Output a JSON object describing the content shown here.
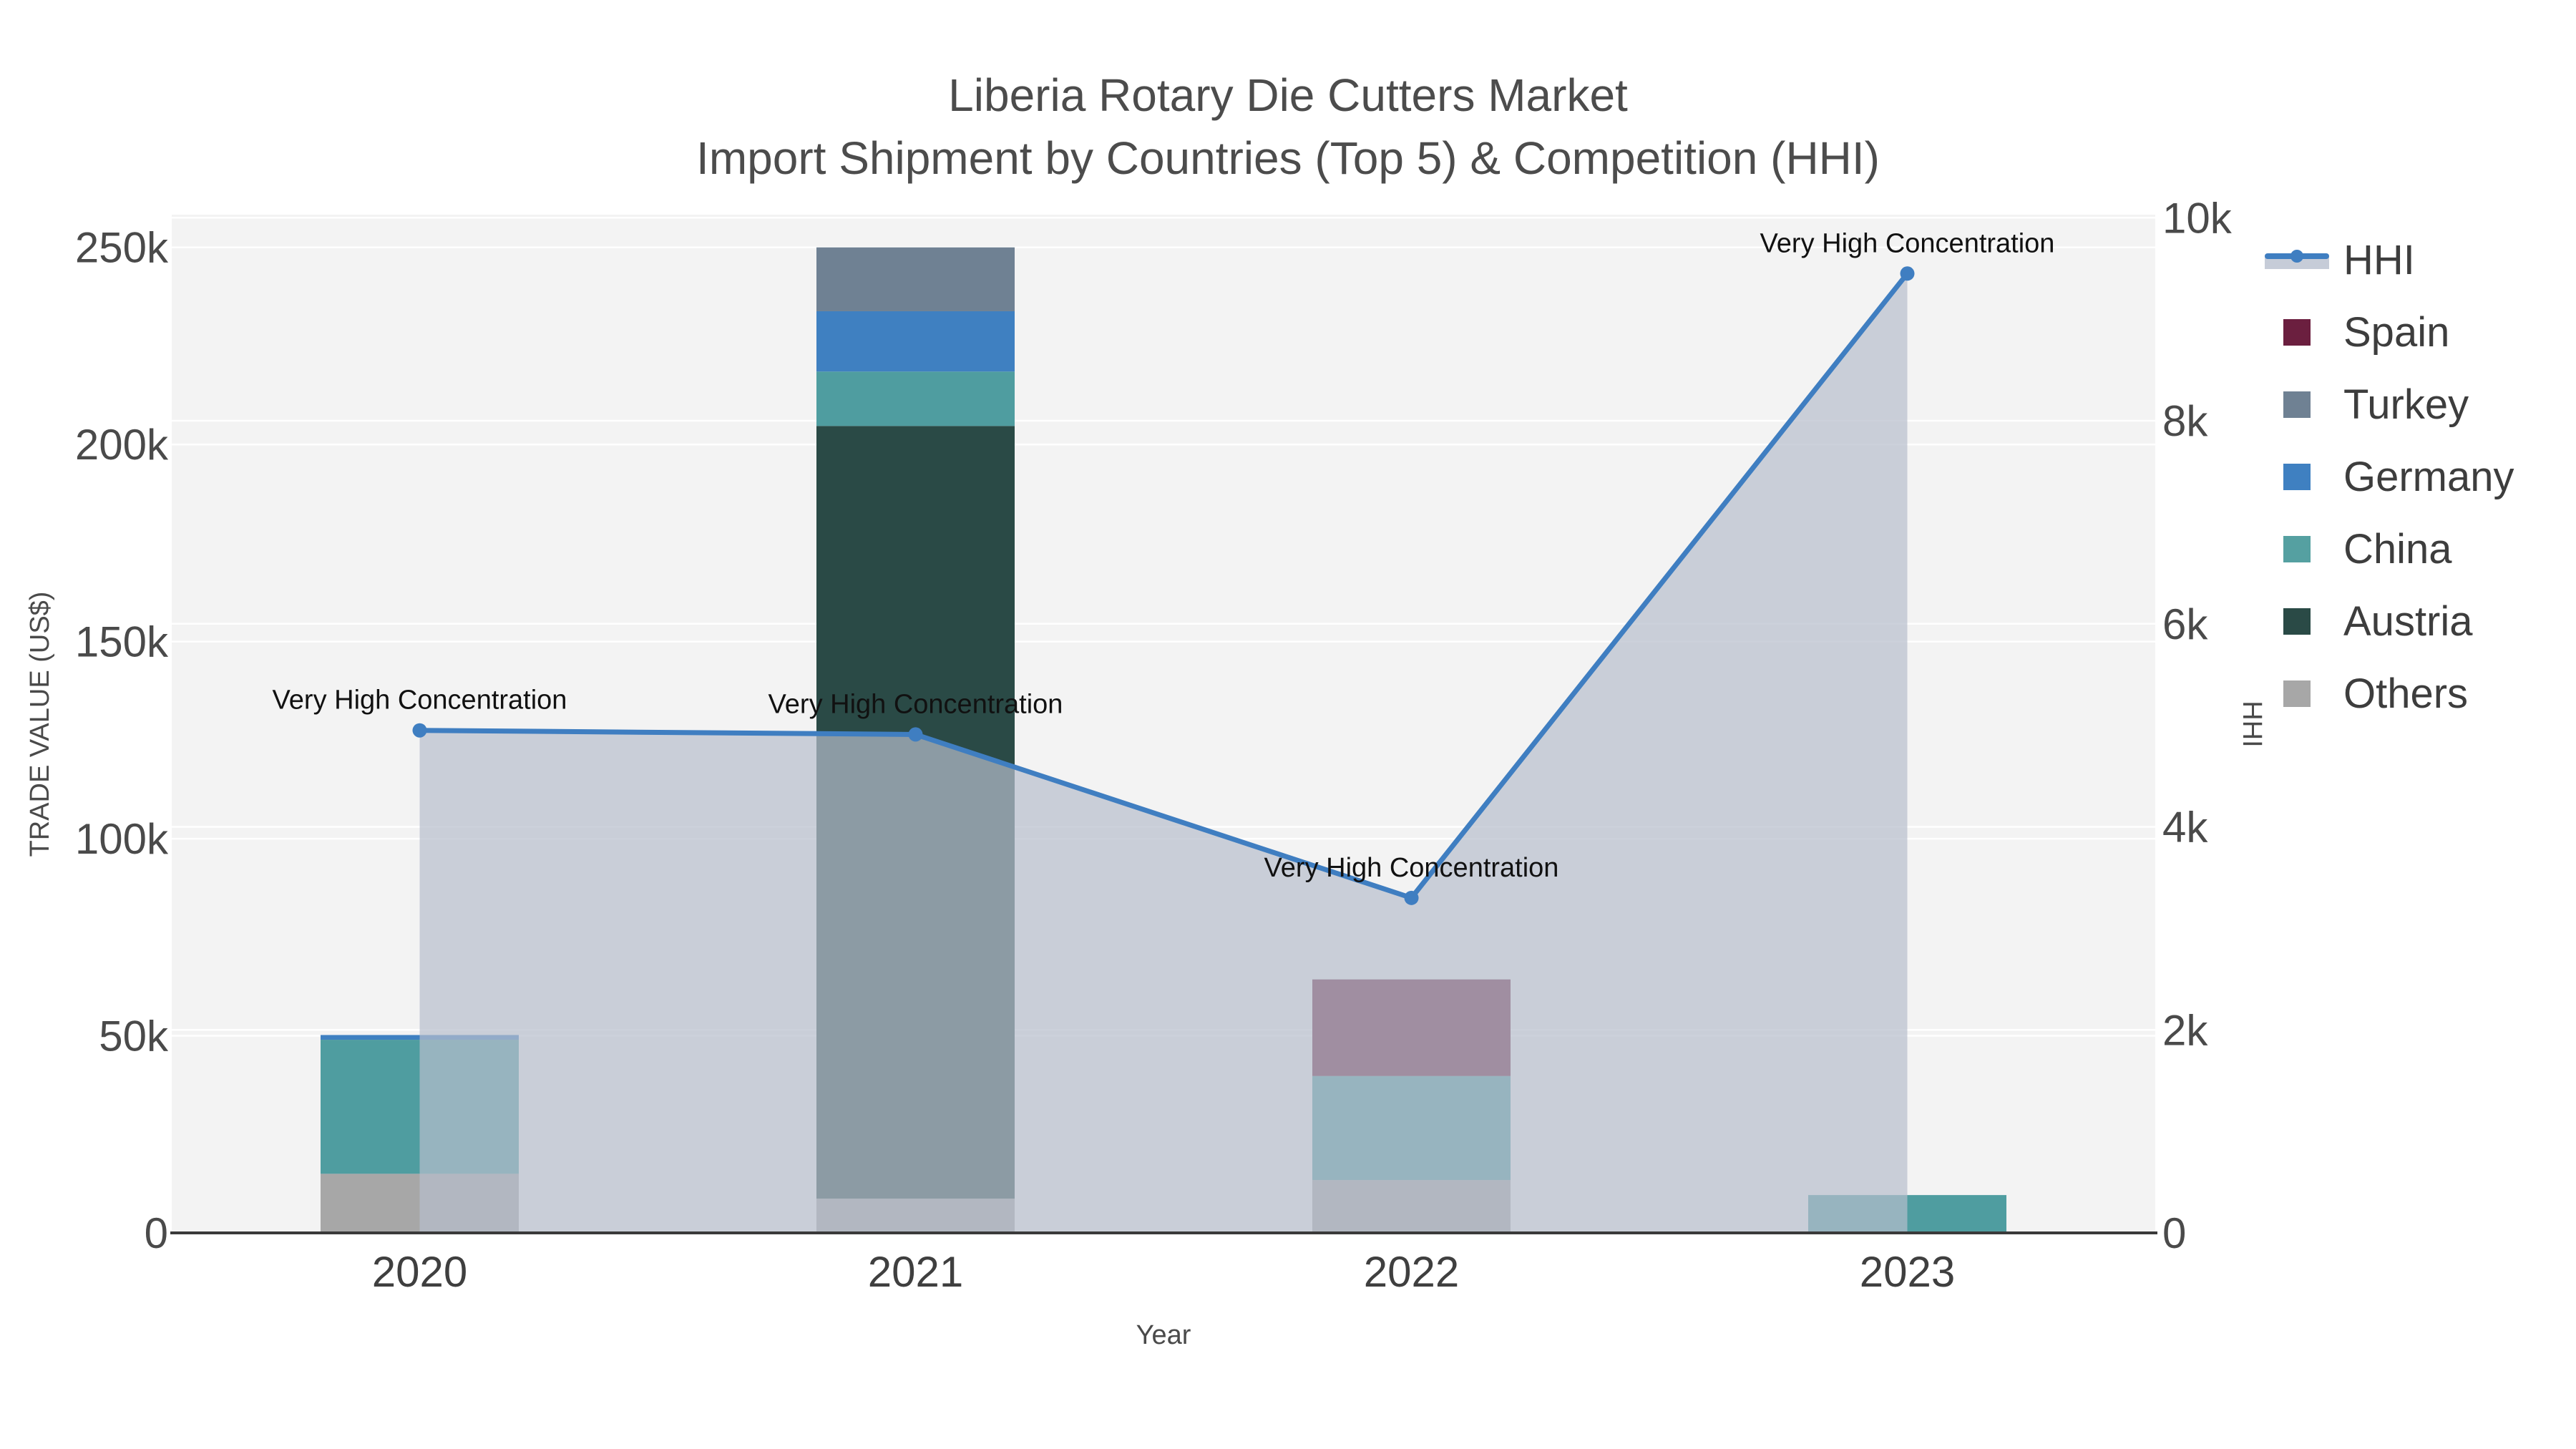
{
  "header": {
    "title": "Liberia Rotary Die Cutters Market",
    "subtitle": "Import Shipment by Countries (Top 5) & Competition (HHI)"
  },
  "chart_data": {
    "type": "combo-stacked-bar-line",
    "categories": [
      "2020",
      "2021",
      "2022",
      "2023"
    ],
    "bar_series": [
      {
        "name": "Others",
        "color": "#a7a7a7",
        "values": [
          15000,
          8700,
          13400,
          0
        ]
      },
      {
        "name": "Austria",
        "color": "#2a4a46",
        "values": [
          0,
          196000,
          0,
          0
        ]
      },
      {
        "name": "China",
        "color": "#4f9da0",
        "values": [
          34000,
          13800,
          26400,
          9600
        ]
      },
      {
        "name": "Germany",
        "color": "#3f80c1",
        "values": [
          1200,
          15300,
          0,
          0
        ]
      },
      {
        "name": "Turkey",
        "color": "#6f8193",
        "values": [
          0,
          16200,
          0,
          0
        ]
      },
      {
        "name": "Spain",
        "color": "#6b1f3f",
        "values": [
          0,
          0,
          24500,
          0
        ]
      }
    ],
    "line_series": {
      "name": "HHI",
      "color": "#3f7ec1",
      "area_fill": "rgba(183,190,204,0.70)",
      "values": [
        4950,
        4910,
        3300,
        9450
      ]
    },
    "annotations": [
      {
        "text": "Very High Concentration",
        "x": "2020"
      },
      {
        "text": "Very High Concentration",
        "x": "2021"
      },
      {
        "text": "Very High Concentration",
        "x": "2022"
      },
      {
        "text": "Very High Concentration",
        "x": "2023"
      }
    ],
    "axes": {
      "left": {
        "title": "TRADE VALUE (US$)",
        "range": [
          0,
          258300
        ],
        "ticks": [
          {
            "v": 0,
            "label": "0"
          },
          {
            "v": 50000,
            "label": "50k"
          },
          {
            "v": 100000,
            "label": "100k"
          },
          {
            "v": 150000,
            "label": "150k"
          },
          {
            "v": 200000,
            "label": "200k"
          },
          {
            "v": 250000,
            "label": "250k"
          }
        ]
      },
      "right": {
        "title": "HHI",
        "range": [
          0,
          10030
        ],
        "ticks": [
          {
            "v": 0,
            "label": "0"
          },
          {
            "v": 2000,
            "label": "2k"
          },
          {
            "v": 4000,
            "label": "4k"
          },
          {
            "v": 6000,
            "label": "6k"
          },
          {
            "v": 8000,
            "label": "8k"
          },
          {
            "v": 10000,
            "label": "10k"
          }
        ]
      },
      "x": {
        "title": "Year"
      }
    },
    "legend": [
      {
        "label": "HHI",
        "type": "line",
        "color": "#3f7ec1",
        "fill": "#c6ccd8"
      },
      {
        "label": "Spain",
        "type": "box",
        "color": "#6b1f3f"
      },
      {
        "label": "Turkey",
        "type": "box",
        "color": "#6f8193"
      },
      {
        "label": "Germany",
        "type": "box",
        "color": "#3f80c1"
      },
      {
        "label": "China",
        "type": "box",
        "color": "#55a0a1"
      },
      {
        "label": "Austria",
        "type": "box",
        "color": "#2a4a46"
      },
      {
        "label": "Others",
        "type": "box",
        "color": "#a7a7a7"
      }
    ],
    "legend_position": "right",
    "grid": true,
    "plot_bg": "#f3f3f3",
    "axis_line_color": "#3a3a3a",
    "tick_color": "#4a4a4a"
  }
}
